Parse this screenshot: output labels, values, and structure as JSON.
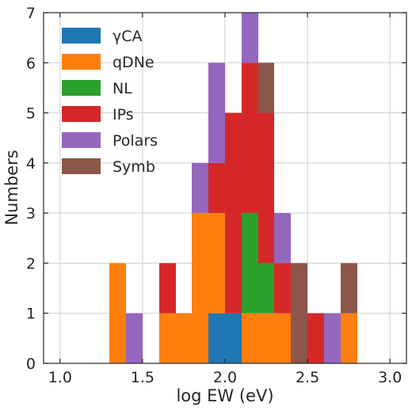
{
  "chart_data": {
    "type": "bar",
    "subtype": "stacked-histogram",
    "xlabel": "log EW (eV)",
    "ylabel": "Numbers",
    "xlim": [
      0.9,
      3.1
    ],
    "ylim": [
      0,
      7
    ],
    "xticks": [
      1.0,
      1.5,
      2.0,
      2.5,
      3.0
    ],
    "xtick_labels": [
      "1.0",
      "1.5",
      "2.0",
      "2.5",
      "3.0"
    ],
    "yticks": [
      0,
      1,
      2,
      3,
      4,
      5,
      6,
      7
    ],
    "ytick_labels": [
      "0",
      "1",
      "2",
      "3",
      "4",
      "5",
      "6",
      "7"
    ],
    "grid": true,
    "legend_position": "upper-left",
    "bin_edges": [
      1.3,
      1.4,
      1.5,
      1.6,
      1.7,
      1.8,
      1.9,
      2.0,
      2.1,
      2.2,
      2.3,
      2.4,
      2.5,
      2.6,
      2.7,
      2.8,
      2.9
    ],
    "series": [
      {
        "name": "γCA",
        "color": "#1f77b4",
        "values": [
          0,
          0,
          0,
          0,
          0,
          0,
          1,
          1,
          0,
          0,
          0,
          0,
          0,
          0,
          0,
          0
        ]
      },
      {
        "name": "qDNe",
        "color": "#ff7f0e",
        "values": [
          2,
          0,
          0,
          1,
          1,
          3,
          2,
          0,
          1,
          1,
          1,
          0,
          0,
          0,
          1,
          0
        ]
      },
      {
        "name": "NL",
        "color": "#2ca02c",
        "values": [
          0,
          0,
          0,
          0,
          0,
          0,
          0,
          0,
          2,
          1,
          0,
          0,
          0,
          0,
          0,
          0
        ]
      },
      {
        "name": "IPs",
        "color": "#d62728",
        "values": [
          0,
          0,
          0,
          1,
          0,
          0,
          1,
          4,
          3,
          3,
          1,
          0,
          1,
          0,
          0,
          0
        ]
      },
      {
        "name": "Polars",
        "color": "#9467bd",
        "values": [
          0,
          1,
          0,
          0,
          0,
          1,
          2,
          0,
          1,
          0,
          1,
          0,
          0,
          1,
          0,
          0
        ]
      },
      {
        "name": "Symb",
        "color": "#8c564b",
        "values": [
          0,
          0,
          0,
          0,
          0,
          0,
          0,
          0,
          0,
          1,
          0,
          2,
          0,
          0,
          1,
          0
        ]
      }
    ]
  }
}
